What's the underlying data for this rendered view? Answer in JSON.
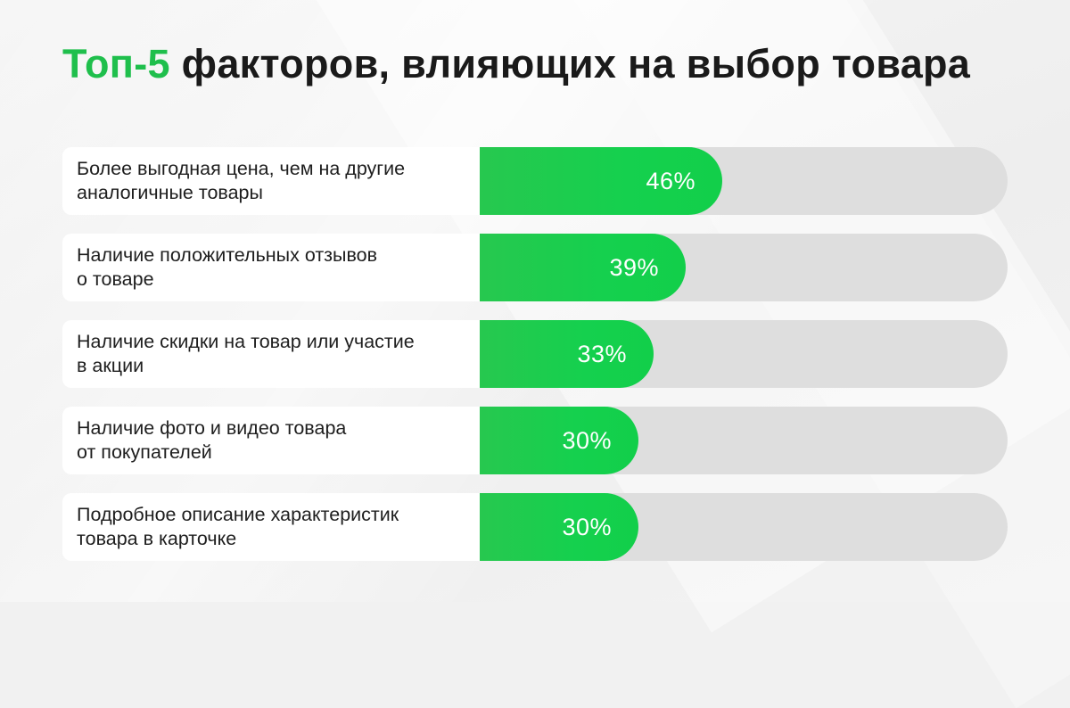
{
  "title": {
    "accent": "Топ-5",
    "rest": " факторов, влияющих на выбор товара"
  },
  "colors": {
    "accent": "#1fbf4c",
    "bar_fill": "#14cf4b",
    "bar_track": "#dedede",
    "label_bg": "#ffffff",
    "background": "#f1f1f1"
  },
  "chart_data": {
    "type": "bar",
    "orientation": "horizontal",
    "categories": [
      "Более выгодная цена, чем на другие\nаналогичные товары",
      "Наличие положительных отзывов\nо товаре",
      "Наличие скидки на товар или участие\nв акции",
      "Наличие фото и видео товара\nот покупателей",
      "Подробное описание характеристик\nтовара в карточке"
    ],
    "values": [
      46,
      39,
      33,
      30,
      30
    ],
    "value_labels": [
      "46%",
      "39%",
      "33%",
      "30%",
      "30%"
    ],
    "unit": "%",
    "xlim": [
      0,
      100
    ],
    "grid": false,
    "legend": "none"
  }
}
